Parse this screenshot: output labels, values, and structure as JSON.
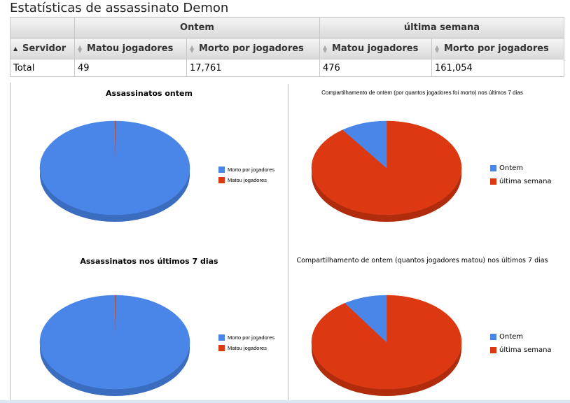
{
  "page": {
    "title": "Estatísticas de assassinato Demon"
  },
  "table": {
    "groups": [
      "Ontem",
      "última semana"
    ],
    "columns": [
      "Servidor",
      "Matou jogadores",
      "Morto por jogadores",
      "Matou jogadores",
      "Morto por jogadores"
    ],
    "rows": [
      [
        "Total",
        "49",
        "17,761",
        "476",
        "161,054"
      ]
    ]
  },
  "colors": {
    "blue": "#4a86e8",
    "blue_side": "#3a6cc0",
    "red": "#dc3912",
    "red_side": "#b02c0c"
  },
  "chart_data": [
    {
      "type": "pie",
      "title": "Assassinatos ontem",
      "legend": "right",
      "slices": [
        {
          "label": "Morto por jogadores",
          "value": 17761,
          "color": "#4a86e8"
        },
        {
          "label": "Matou jogadores",
          "value": 49,
          "color": "#dc3912"
        }
      ]
    },
    {
      "type": "pie",
      "title": "Compartilhamento de ontem (por quantos jogadores foi morto) nos últimos 7 dias",
      "legend": "right",
      "slices": [
        {
          "label": "Ontem",
          "value": 17761,
          "color": "#4a86e8"
        },
        {
          "label": "última semana",
          "value": 161054,
          "color": "#dc3912"
        }
      ]
    },
    {
      "type": "pie",
      "title": "Assassinatos nos últimos 7 dias",
      "legend": "right",
      "slices": [
        {
          "label": "Morto por jogadores",
          "value": 161054,
          "color": "#4a86e8"
        },
        {
          "label": "Matou jogadores",
          "value": 476,
          "color": "#dc3912"
        }
      ]
    },
    {
      "type": "pie",
      "title": "Compartilhamento de ontem (quantos jogadores matou) nos últimos 7 dias",
      "legend": "right",
      "slices": [
        {
          "label": "Ontem",
          "value": 49,
          "color": "#4a86e8"
        },
        {
          "label": "última semana",
          "value": 476,
          "color": "#dc3912"
        }
      ]
    }
  ]
}
